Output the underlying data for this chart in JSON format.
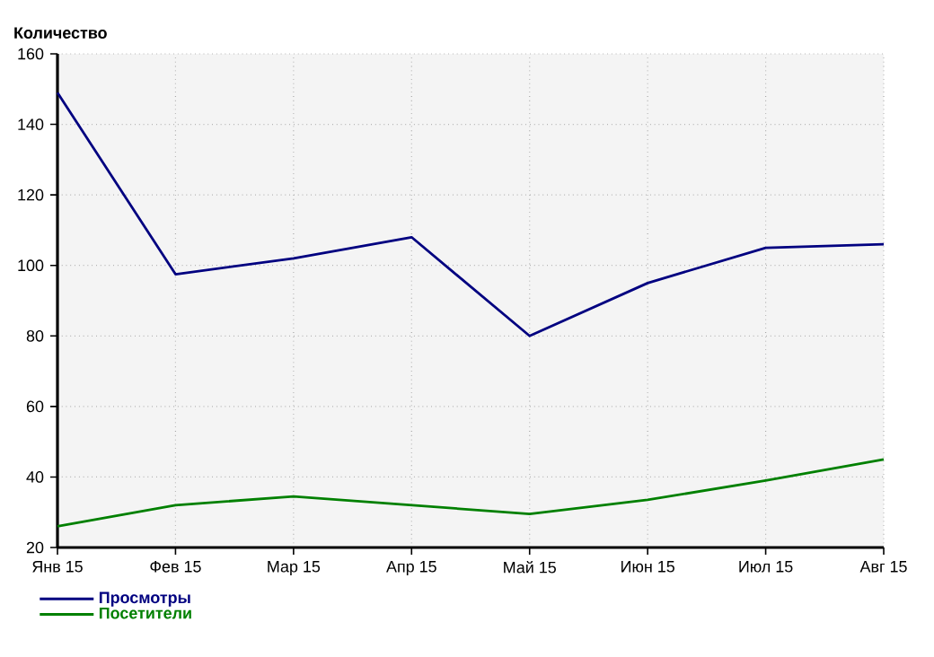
{
  "chart_data": {
    "type": "line",
    "ylabel": "Количество",
    "categories": [
      "Янв 15",
      "Фев 15",
      "Мар 15",
      "Апр 15",
      "Май 15",
      "Июн 15",
      "Июл 15",
      "Авг 15"
    ],
    "series": [
      {
        "name": "Просмотры",
        "color": "#000080",
        "values": [
          149,
          97.5,
          102,
          108,
          80,
          95,
          105,
          106
        ]
      },
      {
        "name": "Посетители",
        "color": "#008000",
        "values": [
          26,
          32,
          34.5,
          32,
          29.5,
          33.5,
          39,
          45
        ]
      }
    ],
    "ylim": [
      20,
      160
    ],
    "yticks": [
      20,
      40,
      60,
      80,
      100,
      120,
      140,
      160
    ],
    "grid": true,
    "legend": "bottom left"
  }
}
